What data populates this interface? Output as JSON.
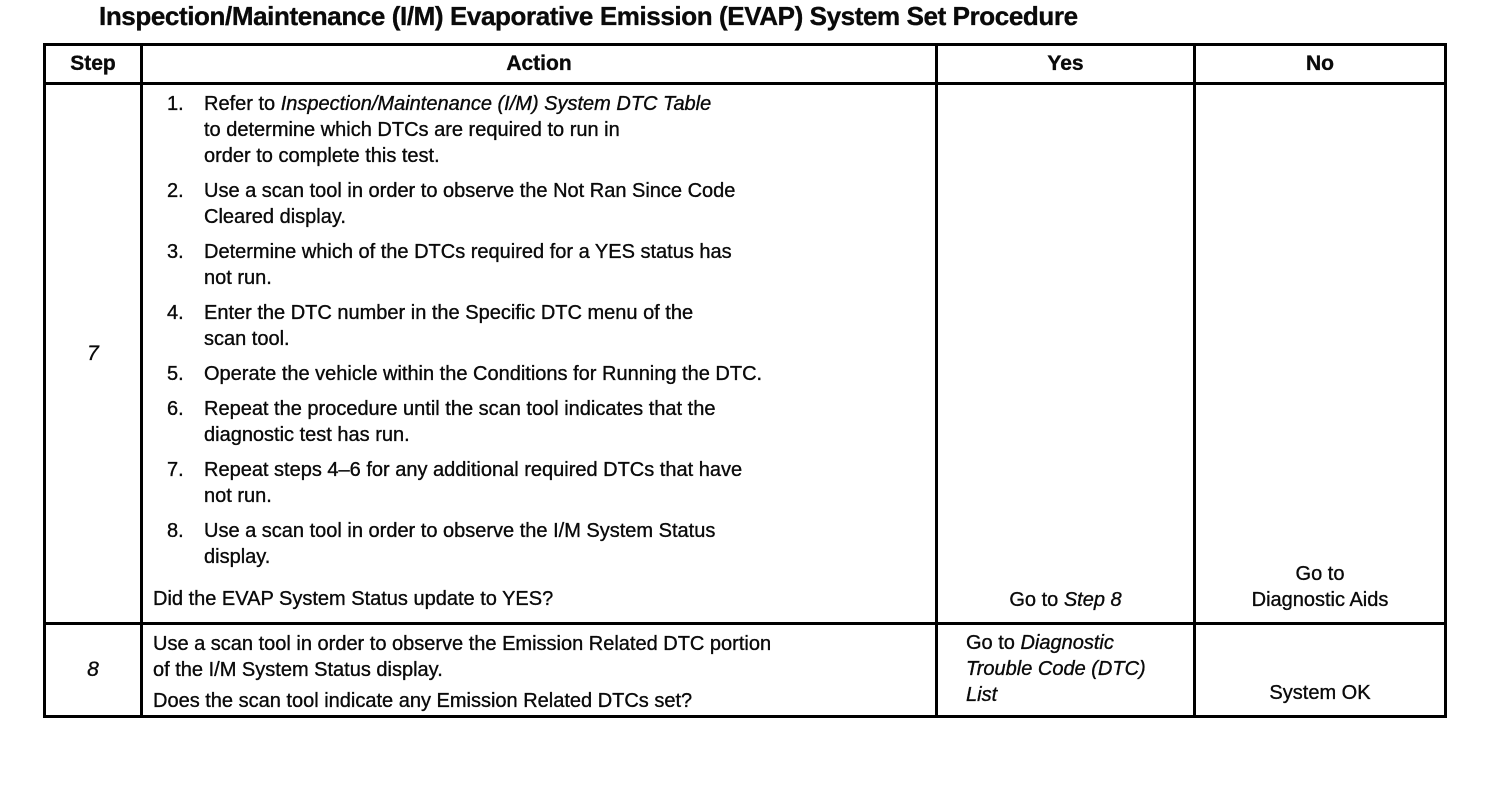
{
  "title": "Inspection/Maintenance (I/M) Evaporative Emission (EVAP) System Set Procedure",
  "table": {
    "headers": {
      "step": "Step",
      "action": "Action",
      "yes": "Yes",
      "no": "No"
    },
    "rows": [
      {
        "step": "7",
        "action": {
          "items": [
            {
              "num": "1.",
              "pre": "Refer to ",
              "em": "Inspection/Maintenance (I/M) System DTC Table",
              "post": "\nto determine which DTCs are required to run in\norder to complete this test."
            },
            {
              "num": "2.",
              "pre": "Use a scan tool in order to observe the Not Ran Since Code\nCleared display."
            },
            {
              "num": "3.",
              "pre": "Determine which of the DTCs required for a YES status has\nnot run."
            },
            {
              "num": "4.",
              "pre": "Enter the DTC number in the Specific DTC menu of the\nscan tool."
            },
            {
              "num": "5.",
              "pre": "Operate the vehicle within the Conditions for Running the DTC."
            },
            {
              "num": "6.",
              "pre": "Repeat the procedure until the scan tool indicates that the\ndiagnostic test has run."
            },
            {
              "num": "7.",
              "pre": "Repeat steps 4–6 for any additional required DTCs that have\nnot run."
            },
            {
              "num": "8.",
              "pre": "Use a scan tool in order to observe the I/M System Status\ndisplay."
            }
          ],
          "question": "Did the EVAP System Status update to YES?"
        },
        "yes": {
          "pre": "Go to ",
          "em": "Step 8"
        },
        "no": {
          "pre": "Go to\nDiagnostic Aids"
        }
      },
      {
        "step": "8",
        "action": {
          "paragraphs": [
            "Use a scan tool in order to observe the Emission Related DTC portion\nof the I/M System Status display.",
            "Does the scan tool indicate any Emission Related DTCs set?"
          ]
        },
        "yes": {
          "pre": "Go to ",
          "em": "Diagnostic\nTrouble Code (DTC)\nList"
        },
        "no": {
          "pre": "System OK"
        }
      }
    ]
  }
}
